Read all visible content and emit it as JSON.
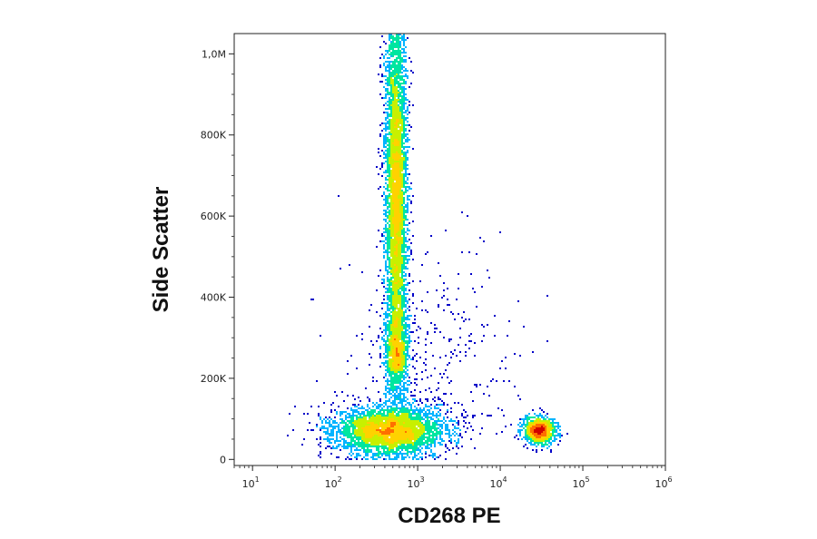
{
  "chart_data": {
    "type": "scatter",
    "title": "",
    "xlabel": "CD268 PE",
    "ylabel": "Side Scatter",
    "x_scale": "log",
    "xlim": [
      6,
      1000000
    ],
    "ylim": [
      -15000,
      1050000
    ],
    "x_ticks": [
      {
        "value": 10,
        "base": "10",
        "exp": "1"
      },
      {
        "value": 100,
        "base": "10",
        "exp": "2"
      },
      {
        "value": 1000,
        "base": "10",
        "exp": "3"
      },
      {
        "value": 10000,
        "base": "10",
        "exp": "4"
      },
      {
        "value": 100000,
        "base": "10",
        "exp": "5"
      },
      {
        "value": 1000000,
        "base": "10",
        "exp": "6"
      }
    ],
    "y_ticks": [
      {
        "value": 0,
        "label": "0"
      },
      {
        "value": 200000,
        "label": "200K"
      },
      {
        "value": 400000,
        "label": "400K"
      },
      {
        "value": 600000,
        "label": "600K"
      },
      {
        "value": 800000,
        "label": "800K"
      },
      {
        "value": 1000000,
        "label": "1,0M"
      }
    ],
    "grid": false,
    "color_scale": [
      "#0000c8",
      "#00b4ff",
      "#00e6a0",
      "#c8f000",
      "#ffd200",
      "#ff6e00",
      "#d20000"
    ],
    "populations": [
      {
        "x_center": 550,
        "y_from": 220000,
        "y_to": 1050000,
        "log_sd_x": 0.065,
        "count": 5200,
        "peak_y": 650000
      },
      {
        "x_center": 560,
        "y_center": 250000,
        "log_sd_x": 0.07,
        "sd_y": 55000,
        "count": 1000
      },
      {
        "x_center": 450,
        "y_center": 70000,
        "log_sd_x": 0.33,
        "sd_y": 30000,
        "count": 3800
      },
      {
        "x_center": 30000,
        "y_center": 70000,
        "log_sd_x": 0.1,
        "sd_y": 17000,
        "count": 1100
      },
      {
        "x_center": 1500,
        "y_center": 300000,
        "log_sd_x": 0.5,
        "sd_y": 220000,
        "count": 420
      }
    ]
  }
}
